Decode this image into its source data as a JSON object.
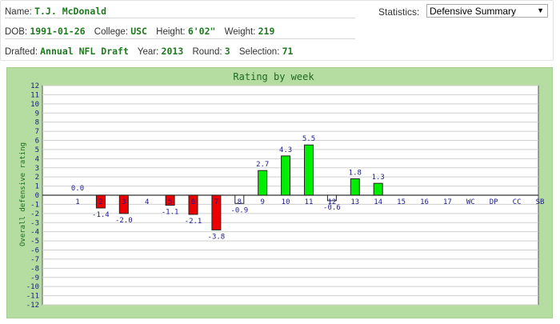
{
  "player": {
    "name_label": "Name:",
    "name": "T.J. McDonald",
    "dob_label": "DOB:",
    "dob": "1991-01-26",
    "college_label": "College:",
    "college": "USC",
    "height_label": "Height:",
    "height": "6'02\"",
    "weight_label": "Weight:",
    "weight": "219",
    "drafted_label": "Drafted:",
    "drafted": "Annual NFL Draft",
    "year_label": "Year:",
    "year": "2013",
    "round_label": "Round:",
    "round": "3",
    "selection_label": "Selection:",
    "selection": "71"
  },
  "statistics": {
    "label": "Statistics:",
    "selected": "Defensive Summary"
  },
  "chart_data": {
    "type": "bar",
    "title": "Rating by week",
    "ylabel": "Overall defensive rating",
    "xlabel": "",
    "ylim": [
      -12,
      12
    ],
    "yticks": [
      12,
      11,
      10,
      9,
      8,
      7,
      6,
      5,
      4,
      3,
      2,
      1,
      0,
      -1,
      -2,
      -3,
      -4,
      -5,
      -6,
      -7,
      -8,
      -9,
      -10,
      -11,
      -12
    ],
    "categories": [
      "1",
      "2",
      "3",
      "4",
      "5",
      "6",
      "7",
      "8",
      "9",
      "10",
      "11",
      "12",
      "13",
      "14",
      "15",
      "16",
      "17",
      "WC",
      "DP",
      "CC",
      "SB"
    ],
    "values": [
      0.0,
      -1.4,
      -2.0,
      null,
      -1.1,
      -2.1,
      -3.8,
      -0.9,
      2.7,
      4.3,
      5.5,
      -0.6,
      1.8,
      1.3,
      null,
      null,
      null,
      null,
      null,
      null,
      null
    ],
    "value_labels": [
      "0.0",
      "-1.4",
      "-2.0",
      "",
      "-1.1",
      "-2.1",
      "-3.8",
      "-0.9",
      "2.7",
      "4.3",
      "5.5",
      "-0.6",
      "1.8",
      "1.3",
      "",
      "",
      "",
      "",
      "",
      "",
      ""
    ],
    "grid": true,
    "colors": {
      "positive": "#00ee00",
      "negative": "#ee0000",
      "small": "#ffffff",
      "background": "#b5dca1",
      "title": "#1f6b1f",
      "label": "#1a1a8c"
    }
  }
}
